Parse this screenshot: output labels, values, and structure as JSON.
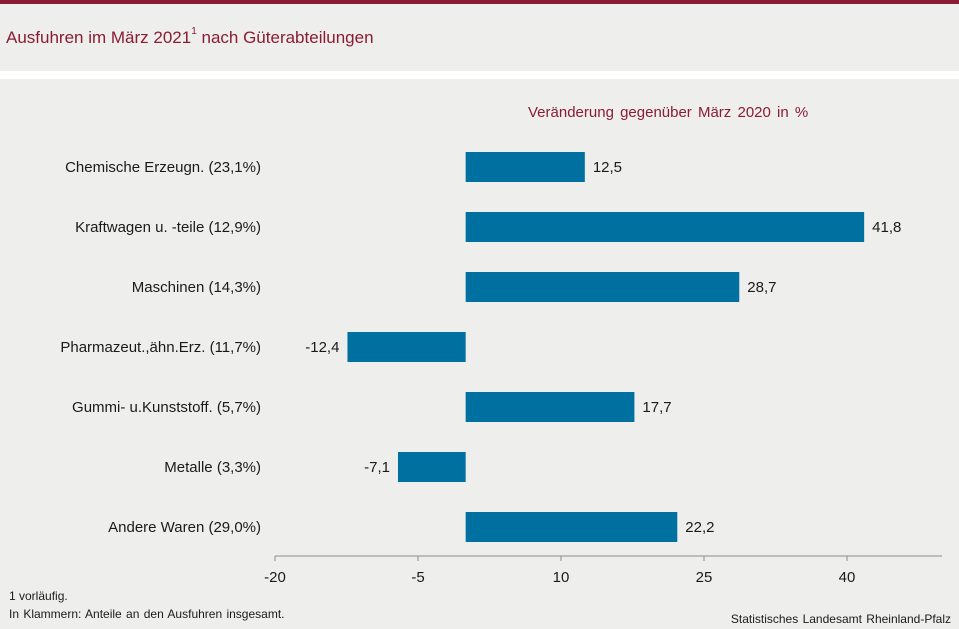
{
  "header": {
    "title": "Ausfuhren im März 2021",
    "title_sup": "1",
    "title_suffix": "nach Güterabteilungen"
  },
  "colors": {
    "accent": "#8a1c34",
    "bar": "#0070a0",
    "background": "#eeefed"
  },
  "chart_data": {
    "type": "bar",
    "orientation": "horizontal",
    "title": "Veränderung gegenüber März 2020 in %",
    "categories": [
      "Chemische Erzeugn. (23,1%)",
      "Kraftwagen u. -teile (12,9%)",
      "Maschinen (14,3%)",
      "Pharmazeut.,ähn.Erz. (11,7%)",
      "Gummi- u.Kunststoff. (5,7%)",
      "Metalle (3,3%)",
      "Andere Waren (29,0%)"
    ],
    "values": [
      12.5,
      41.8,
      28.7,
      -12.4,
      17.7,
      -7.1,
      22.2
    ],
    "value_labels": [
      "12,5",
      "41,8",
      "28,7",
      "-12,4",
      "17,7",
      "-7,1",
      "22,2"
    ],
    "xticks": [
      -20,
      -5,
      10,
      25,
      40
    ],
    "xlim": [
      -20,
      50
    ],
    "grid": false
  },
  "footer": {
    "footnote": "1 vorläufig.",
    "note": "In Klammern: Anteile an den Ausfuhren insgesamt.",
    "source": "Statistisches Landesamt Rheinland-Pfalz"
  }
}
